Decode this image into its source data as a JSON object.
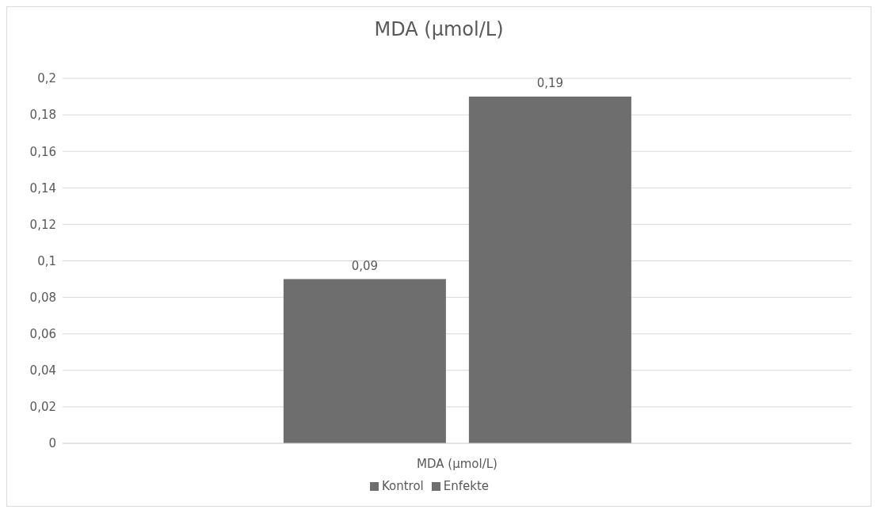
{
  "chart_data": {
    "type": "bar",
    "title": "MDA (µmol/L)",
    "categories": [
      "MDA (µmol/L)"
    ],
    "series": [
      {
        "name": "Kontrol",
        "color": "#6e6e6e",
        "values": [
          0.09
        ],
        "value_labels": [
          "0,09"
        ]
      },
      {
        "name": "Enfekte",
        "color": "#6e6e6e",
        "values": [
          0.19
        ],
        "value_labels": [
          "0,19"
        ]
      }
    ],
    "ylim": [
      0,
      0.2
    ],
    "yticks": [
      {
        "value": 0,
        "label": "0"
      },
      {
        "value": 0.02,
        "label": "0,02"
      },
      {
        "value": 0.04,
        "label": "0,04"
      },
      {
        "value": 0.06,
        "label": "0,06"
      },
      {
        "value": 0.08,
        "label": "0,08"
      },
      {
        "value": 0.1,
        "label": "0,1"
      },
      {
        "value": 0.12,
        "label": "0,12"
      },
      {
        "value": 0.14,
        "label": "0,14"
      },
      {
        "value": 0.16,
        "label": "0,16"
      },
      {
        "value": 0.18,
        "label": "0,18"
      },
      {
        "value": 0.2,
        "label": "0,2"
      }
    ],
    "grid": "y",
    "legend": "bottom"
  }
}
